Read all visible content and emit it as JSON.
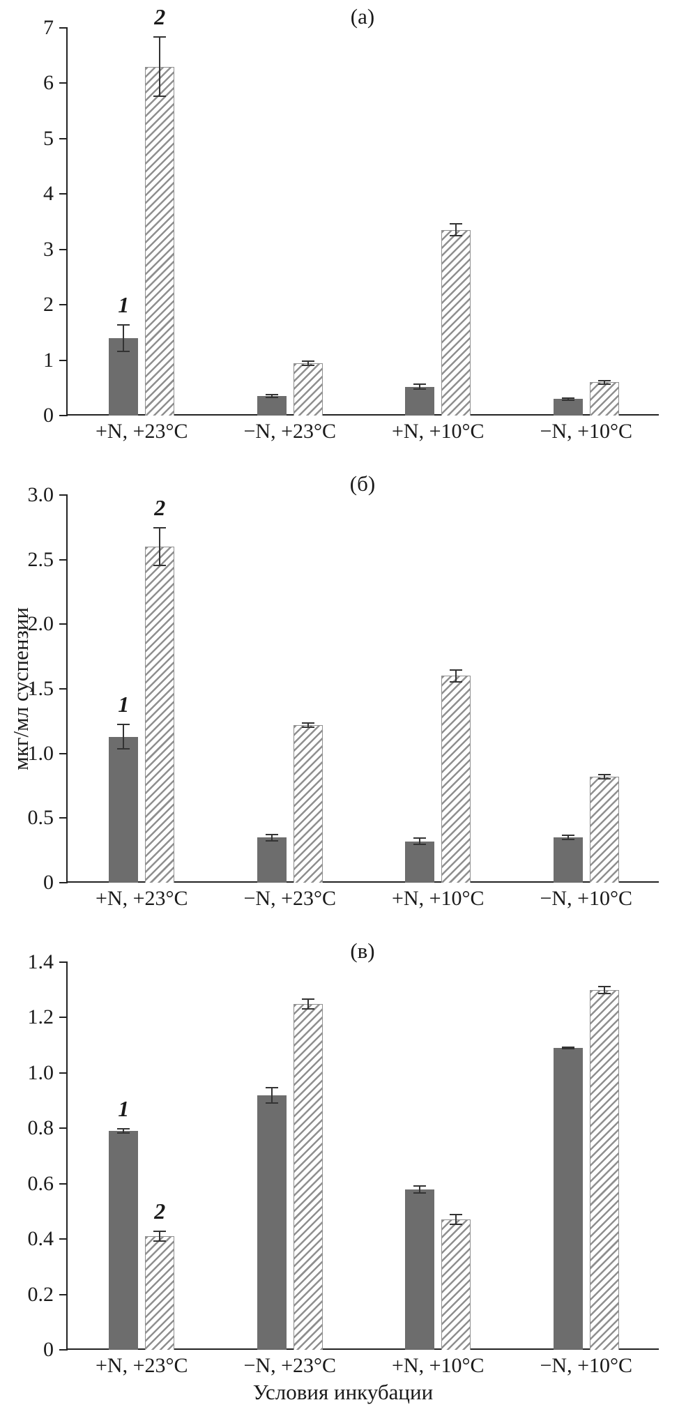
{
  "figure": {
    "ylabel": "мкг/мл суспензии",
    "xlabel": "Условия инкубации",
    "colors": {
      "solid_bar": "#6d6d6d",
      "hatch_line": "#8f8f8f",
      "axis": "#222222",
      "error_bar": "#333333"
    }
  },
  "chart_data": [
    {
      "type": "bar",
      "title": "(а)",
      "categories": [
        "+N, +23°C",
        "−N, +23°C",
        "+N, +10°C",
        "−N, +10°C"
      ],
      "ylim": [
        0,
        7
      ],
      "yticks": [
        "0",
        "1",
        "2",
        "3",
        "4",
        "5",
        "6",
        "7"
      ],
      "marker_group": 0,
      "series": [
        {
          "name": "1",
          "style": "solid",
          "values": [
            1.4,
            0.35,
            0.52,
            0.3
          ],
          "errors": [
            0.25,
            0.04,
            0.06,
            0.03
          ]
        },
        {
          "name": "2",
          "style": "hatched",
          "values": [
            6.3,
            0.95,
            3.35,
            0.6
          ],
          "errors": [
            0.55,
            0.05,
            0.12,
            0.04
          ]
        }
      ]
    },
    {
      "type": "bar",
      "title": "(б)",
      "categories": [
        "+N, +23°C",
        "−N, +23°C",
        "+N, +10°C",
        "−N, +10°C"
      ],
      "ylim": [
        0,
        3.0
      ],
      "yticks": [
        "0",
        "0.5",
        "1.0",
        "1.5",
        "2.0",
        "2.5",
        "3.0"
      ],
      "marker_group": 0,
      "series": [
        {
          "name": "1",
          "style": "solid",
          "values": [
            1.13,
            0.35,
            0.32,
            0.35
          ],
          "errors": [
            0.1,
            0.03,
            0.03,
            0.02
          ]
        },
        {
          "name": "2",
          "style": "hatched",
          "values": [
            2.6,
            1.22,
            1.6,
            0.82
          ],
          "errors": [
            0.15,
            0.02,
            0.05,
            0.02
          ]
        }
      ]
    },
    {
      "type": "bar",
      "title": "(в)",
      "categories": [
        "+N, +23°C",
        "−N, +23°C",
        "+N, +10°C",
        "−N, +10°C"
      ],
      "ylim": [
        0,
        1.4
      ],
      "yticks": [
        "0",
        "0.2",
        "0.4",
        "0.6",
        "0.8",
        "1.0",
        "1.2",
        "1.4"
      ],
      "marker_group": 0,
      "series": [
        {
          "name": "1",
          "style": "solid",
          "values": [
            0.79,
            0.92,
            0.58,
            1.09
          ],
          "errors": [
            0.01,
            0.03,
            0.015,
            0.005
          ]
        },
        {
          "name": "2",
          "style": "hatched",
          "values": [
            0.41,
            1.25,
            0.47,
            1.3
          ],
          "errors": [
            0.02,
            0.02,
            0.02,
            0.015
          ]
        }
      ]
    }
  ]
}
